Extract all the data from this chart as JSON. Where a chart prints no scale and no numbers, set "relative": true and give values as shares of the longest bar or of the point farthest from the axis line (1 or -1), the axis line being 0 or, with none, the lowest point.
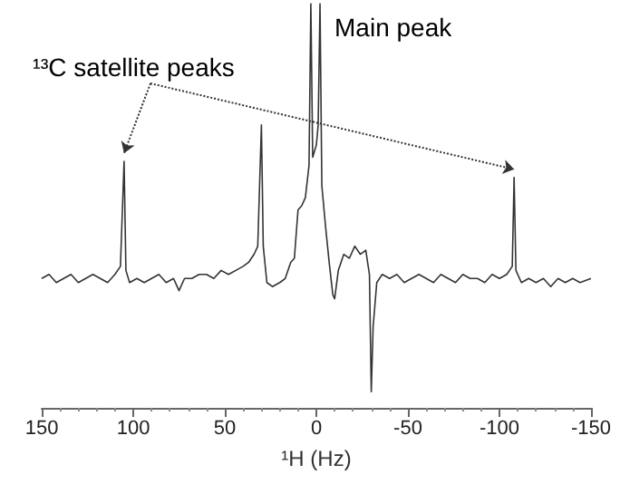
{
  "chart_data": {
    "type": "line",
    "relative": true,
    "color": "#333333",
    "marker": "none",
    "line_style": "solid",
    "grid": false,
    "tick_labels": "x",
    "xlabel": "¹H (Hz)",
    "xlim": [
      150,
      -150
    ],
    "xticks": [
      150,
      100,
      50,
      0,
      -50,
      -100,
      -150
    ],
    "annotations": [
      "¹³C satellite peaks",
      {
        "text": "Main peak",
        "x": -2,
        "y": 1
      }
    ],
    "x": [
      150,
      146,
      142,
      138,
      134,
      130,
      126,
      122,
      118,
      114,
      110,
      107,
      105,
      104,
      102,
      98,
      94,
      90,
      86,
      82,
      78,
      75,
      72,
      68,
      64,
      60,
      56,
      52,
      48,
      44,
      40,
      37,
      34,
      32,
      30,
      29,
      27,
      24,
      20,
      17,
      14,
      12,
      10,
      8,
      6,
      4,
      3,
      2,
      0,
      -1,
      -2,
      -3,
      -5,
      -7,
      -9,
      -10,
      -12,
      -15,
      -18,
      -21,
      -24,
      -27,
      -29,
      -30,
      -31,
      -33,
      -36,
      -40,
      -44,
      -48,
      -52,
      -56,
      -60,
      -64,
      -68,
      -72,
      -76,
      -80,
      -84,
      -88,
      -92,
      -96,
      -100,
      -104,
      -107,
      -108,
      -109,
      -112,
      -116,
      -120,
      -124,
      -128,
      -132,
      -136,
      -140,
      -144,
      -150
    ],
    "values": [
      0.32,
      0.33,
      0.31,
      0.32,
      0.33,
      0.31,
      0.32,
      0.33,
      0.32,
      0.31,
      0.33,
      0.35,
      0.61,
      0.34,
      0.31,
      0.32,
      0.31,
      0.32,
      0.33,
      0.31,
      0.32,
      0.29,
      0.32,
      0.32,
      0.33,
      0.33,
      0.32,
      0.34,
      0.33,
      0.34,
      0.35,
      0.36,
      0.38,
      0.4,
      0.7,
      0.4,
      0.31,
      0.3,
      0.31,
      0.32,
      0.36,
      0.37,
      0.49,
      0.5,
      0.52,
      0.6,
      1.0,
      0.62,
      0.65,
      0.7,
      1.0,
      0.55,
      0.45,
      0.36,
      0.28,
      0.27,
      0.34,
      0.38,
      0.37,
      0.4,
      0.38,
      0.39,
      0.33,
      0.04,
      0.2,
      0.31,
      0.33,
      0.32,
      0.33,
      0.31,
      0.32,
      0.33,
      0.32,
      0.31,
      0.33,
      0.32,
      0.31,
      0.33,
      0.32,
      0.32,
      0.31,
      0.33,
      0.32,
      0.33,
      0.35,
      0.57,
      0.34,
      0.31,
      0.32,
      0.31,
      0.32,
      0.3,
      0.32,
      0.31,
      0.32,
      0.31,
      0.32
    ]
  }
}
